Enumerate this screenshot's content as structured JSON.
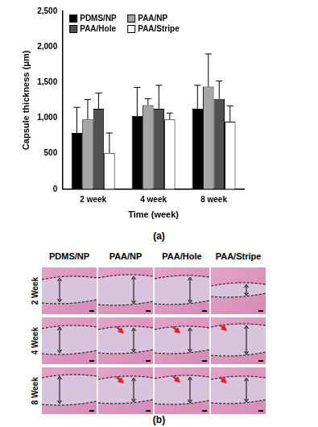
{
  "chart_data": {
    "type": "bar",
    "y_label": "Capsule thickness (μm)",
    "x_label": "Time (week)",
    "categories": [
      "2 week",
      "4 week",
      "8 week"
    ],
    "series": [
      {
        "name": "PDMS/NP",
        "color": "#000000",
        "values": [
          790,
          1030,
          1130
        ],
        "errors": [
          360,
          400,
          330
        ]
      },
      {
        "name": "PAA/NP",
        "color": "#a6a6a6",
        "values": [
          980,
          1180,
          1440
        ],
        "errors": [
          280,
          90,
          460
        ]
      },
      {
        "name": "PAA/Hole",
        "color": "#505050",
        "values": [
          1130,
          1130,
          1270
        ],
        "errors": [
          220,
          330,
          250
        ]
      },
      {
        "name": "PAA/Stripe",
        "color": "#ffffff",
        "values": [
          510,
          980,
          950
        ],
        "errors": [
          280,
          90,
          220
        ]
      }
    ],
    "ylim": [
      0,
      2500
    ],
    "yticks": [
      0,
      500,
      1000,
      1500,
      2000,
      2500
    ],
    "grid": false,
    "legend": "upper left"
  },
  "chart_caption": "(a)",
  "histology": {
    "caption": "(b)",
    "columns": [
      "PDMS/NP",
      "PAA/NP",
      "PAA/Hole",
      "PAA/Stripe"
    ],
    "rows": [
      "2 Week",
      "4 Week",
      "8 Week"
    ]
  }
}
